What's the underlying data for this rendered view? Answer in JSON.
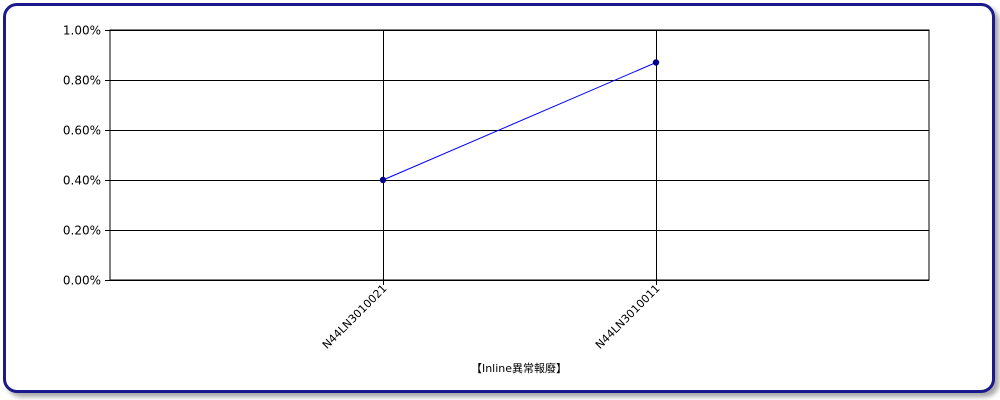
{
  "chart_data": {
    "type": "line",
    "categories": [
      "N44LN3010021",
      "N44LN3010011"
    ],
    "series": [
      {
        "values": [
          0.4,
          0.87
        ],
        "color": "#0000ff"
      }
    ],
    "yticks": [
      "0.00%",
      "0.20%",
      "0.40%",
      "0.60%",
      "0.80%",
      "1.00%"
    ],
    "ylim": [
      0,
      1.0
    ],
    "ylabel": "",
    "xlabel": "【Inline異常報廢】",
    "grid": true,
    "marker_color": "#00008b",
    "frame_color": "#1a1a8c"
  }
}
